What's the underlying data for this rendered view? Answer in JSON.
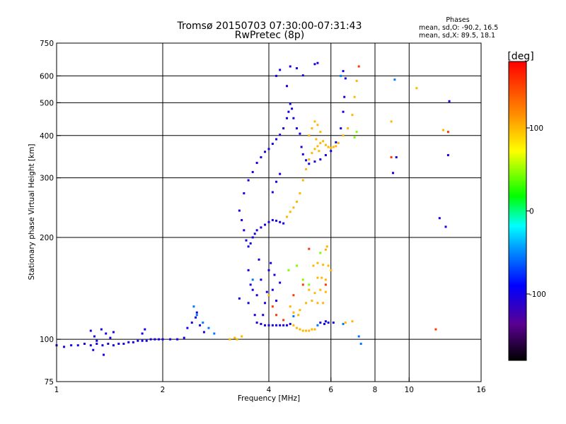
{
  "chart_data": {
    "type": "scatter",
    "title": "Tromsø 20150703 07:30:00-07:31:43",
    "subtitle": "RwPretec (8p)",
    "xlabel": "Frequency [MHz]",
    "ylabel": "Stationary phase Virtual Height [km]",
    "x_scale": "log",
    "y_scale": "log",
    "xlim": [
      1,
      16
    ],
    "ylim": [
      75,
      750
    ],
    "x_ticks": [
      1,
      2,
      4,
      6,
      8,
      10,
      16
    ],
    "y_ticks": [
      75,
      100,
      200,
      300,
      400,
      500,
      600,
      750
    ],
    "x_grid": [
      2,
      4,
      6,
      8,
      10
    ],
    "y_grid": [
      100,
      200,
      300,
      400,
      500,
      600
    ],
    "grid": true,
    "stats": {
      "header": "Phases",
      "line1": "mean, sd,O: -90.2, 16.5",
      "line2": "mean, sd,X:  89.5, 18.1"
    },
    "colorbar": {
      "label": "[deg]",
      "range": [
        -180,
        180
      ],
      "ticks": [
        {
          "value": 100,
          "label": "100"
        },
        {
          "value": 0,
          "label": "0"
        },
        {
          "value": -100,
          "label": "-100"
        }
      ]
    },
    "series": [
      {
        "phase": -100,
        "points": [
          [
            1.0,
            96
          ],
          [
            1.05,
            95
          ],
          [
            1.1,
            96
          ],
          [
            1.15,
            96
          ],
          [
            1.2,
            97
          ],
          [
            1.25,
            96
          ],
          [
            1.3,
            97
          ],
          [
            1.35,
            96
          ],
          [
            1.4,
            97
          ],
          [
            1.45,
            96
          ],
          [
            1.5,
            97
          ],
          [
            1.55,
            97
          ],
          [
            1.6,
            98
          ],
          [
            1.65,
            98
          ],
          [
            1.7,
            99
          ],
          [
            1.75,
            99
          ],
          [
            1.8,
            99
          ],
          [
            1.85,
            100
          ],
          [
            1.9,
            100
          ],
          [
            1.95,
            100
          ],
          [
            2.0,
            100
          ],
          [
            2.1,
            100
          ],
          [
            2.2,
            100
          ],
          [
            2.3,
            101
          ],
          [
            1.25,
            106
          ],
          [
            1.28,
            102
          ],
          [
            1.3,
            99
          ],
          [
            1.34,
            107
          ],
          [
            1.38,
            104
          ],
          [
            1.42,
            101
          ],
          [
            1.45,
            105
          ],
          [
            1.27,
            93
          ],
          [
            1.36,
            90
          ],
          [
            1.75,
            104
          ],
          [
            1.78,
            107
          ],
          [
            2.35,
            108
          ],
          [
            2.42,
            112
          ],
          [
            2.48,
            116
          ],
          [
            2.55,
            110
          ],
          [
            2.5,
            120
          ],
          [
            2.62,
            105
          ],
          [
            3.3,
            132
          ],
          [
            3.5,
            128
          ],
          [
            3.6,
            140
          ],
          [
            3.7,
            135
          ],
          [
            3.8,
            150
          ],
          [
            3.9,
            128
          ],
          [
            4.0,
            160
          ],
          [
            4.1,
            140
          ],
          [
            4.2,
            130
          ],
          [
            4.3,
            147
          ],
          [
            3.5,
            160
          ],
          [
            3.65,
            118
          ],
          [
            3.75,
            172
          ],
          [
            4.05,
            168
          ],
          [
            3.85,
            118
          ],
          [
            4.15,
            155
          ],
          [
            3.55,
            145
          ],
          [
            3.95,
            138
          ],
          [
            3.7,
            112
          ],
          [
            3.8,
            111
          ],
          [
            3.9,
            110
          ],
          [
            4.0,
            110
          ],
          [
            4.1,
            110
          ],
          [
            4.2,
            110
          ],
          [
            4.3,
            110
          ],
          [
            4.4,
            110
          ],
          [
            4.5,
            110
          ],
          [
            4.6,
            111
          ],
          [
            5.6,
            112
          ],
          [
            5.75,
            111
          ],
          [
            5.9,
            112
          ],
          [
            6.1,
            112
          ],
          [
            5.8,
            113
          ],
          [
            3.3,
            240
          ],
          [
            3.35,
            225
          ],
          [
            3.4,
            210
          ],
          [
            3.45,
            196
          ],
          [
            3.5,
            188
          ],
          [
            3.55,
            192
          ],
          [
            3.6,
            200
          ],
          [
            3.65,
            205
          ],
          [
            3.7,
            210
          ],
          [
            3.8,
            214
          ],
          [
            3.9,
            218
          ],
          [
            4.0,
            222
          ],
          [
            4.1,
            225
          ],
          [
            4.2,
            224
          ],
          [
            4.3,
            222
          ],
          [
            4.4,
            220
          ],
          [
            3.4,
            270
          ],
          [
            3.5,
            295
          ],
          [
            3.6,
            312
          ],
          [
            3.7,
            332
          ],
          [
            3.8,
            345
          ],
          [
            3.9,
            358
          ],
          [
            4.0,
            365
          ],
          [
            4.1,
            378
          ],
          [
            4.2,
            390
          ],
          [
            4.3,
            402
          ],
          [
            4.4,
            420
          ],
          [
            4.5,
            450
          ],
          [
            4.55,
            470
          ],
          [
            4.6,
            496
          ],
          [
            4.65,
            480
          ],
          [
            4.7,
            450
          ],
          [
            4.8,
            420
          ],
          [
            4.9,
            405
          ],
          [
            4.1,
            272
          ],
          [
            4.2,
            292
          ],
          [
            4.3,
            308
          ],
          [
            4.95,
            370
          ],
          [
            5.0,
            352
          ],
          [
            5.1,
            338
          ],
          [
            5.2,
            330
          ],
          [
            5.4,
            335
          ],
          [
            5.6,
            340
          ],
          [
            5.8,
            350
          ],
          [
            6.0,
            360
          ],
          [
            6.2,
            382
          ],
          [
            6.4,
            420
          ],
          [
            6.5,
            470
          ],
          [
            6.55,
            520
          ],
          [
            6.6,
            590
          ],
          [
            6.5,
            620
          ],
          [
            4.2,
            600
          ],
          [
            4.3,
            625
          ],
          [
            4.6,
            640
          ],
          [
            4.8,
            632
          ],
          [
            5.0,
            602
          ],
          [
            5.4,
            650
          ],
          [
            5.5,
            655
          ],
          [
            4.5,
            560
          ],
          [
            9.0,
            310
          ],
          [
            9.2,
            345
          ],
          [
            12.7,
            215
          ],
          [
            12.9,
            350
          ],
          [
            13.0,
            505
          ],
          [
            12.2,
            228
          ]
        ]
      },
      {
        "phase": -55,
        "points": [
          [
            2.45,
            125
          ],
          [
            2.5,
            118
          ],
          [
            2.6,
            112
          ],
          [
            2.7,
            108
          ],
          [
            2.8,
            104
          ],
          [
            4.7,
            117
          ],
          [
            5.5,
            110
          ],
          [
            6.5,
            111
          ],
          [
            7.2,
            102
          ],
          [
            7.3,
            97
          ],
          [
            9.1,
            585
          ],
          [
            6.4,
            600
          ],
          [
            3.6,
            150
          ]
        ]
      },
      {
        "phase": 45,
        "points": [
          [
            4.55,
            160
          ],
          [
            5.0,
            150
          ],
          [
            5.2,
            145
          ],
          [
            4.8,
            165
          ],
          [
            7.0,
            395
          ],
          [
            7.1,
            410
          ],
          [
            5.6,
            180
          ]
        ]
      },
      {
        "phase": 100,
        "points": [
          [
            3.1,
            100
          ],
          [
            3.2,
            101
          ],
          [
            3.25,
            100
          ],
          [
            3.35,
            102
          ],
          [
            4.5,
            230
          ],
          [
            4.6,
            238
          ],
          [
            4.7,
            245
          ],
          [
            4.8,
            255
          ],
          [
            4.9,
            270
          ],
          [
            5.0,
            295
          ],
          [
            5.1,
            318
          ],
          [
            5.2,
            340
          ],
          [
            5.3,
            355
          ],
          [
            5.4,
            365
          ],
          [
            5.5,
            372
          ],
          [
            5.6,
            380
          ],
          [
            5.7,
            385
          ],
          [
            5.8,
            375
          ],
          [
            5.9,
            370
          ],
          [
            6.0,
            368
          ],
          [
            6.1,
            370
          ],
          [
            6.2,
            372
          ],
          [
            6.3,
            380
          ],
          [
            6.5,
            400
          ],
          [
            6.7,
            420
          ],
          [
            6.9,
            460
          ],
          [
            7.0,
            520
          ],
          [
            7.1,
            580
          ],
          [
            5.2,
            400
          ],
          [
            5.3,
            420
          ],
          [
            5.4,
            440
          ],
          [
            5.5,
            430
          ],
          [
            5.6,
            410
          ],
          [
            5.45,
            390
          ],
          [
            5.55,
            360
          ],
          [
            4.7,
            110
          ],
          [
            4.8,
            108
          ],
          [
            4.9,
            107
          ],
          [
            5.0,
            106
          ],
          [
            5.1,
            106
          ],
          [
            5.2,
            106
          ],
          [
            5.3,
            107
          ],
          [
            5.4,
            107
          ],
          [
            4.6,
            125
          ],
          [
            4.7,
            120
          ],
          [
            4.85,
            118
          ],
          [
            4.9,
            122
          ],
          [
            5.1,
            128
          ],
          [
            5.3,
            130
          ],
          [
            5.5,
            128
          ],
          [
            5.7,
            128
          ],
          [
            5.2,
            140
          ],
          [
            5.4,
            137
          ],
          [
            5.6,
            140
          ],
          [
            5.8,
            138
          ],
          [
            5.5,
            152
          ],
          [
            5.65,
            152
          ],
          [
            5.8,
            150
          ],
          [
            5.35,
            165
          ],
          [
            5.5,
            168
          ],
          [
            5.7,
            166
          ],
          [
            5.8,
            184
          ],
          [
            5.85,
            188
          ],
          [
            6.6,
            112
          ],
          [
            6.9,
            113
          ],
          [
            5.9,
            165
          ],
          [
            6.0,
            160
          ],
          [
            10.5,
            552
          ],
          [
            8.9,
            440
          ],
          [
            12.5,
            415
          ],
          [
            4.0,
            135
          ]
        ]
      },
      {
        "phase": 155,
        "points": [
          [
            4.1,
            125
          ],
          [
            4.2,
            118
          ],
          [
            4.4,
            114
          ],
          [
            4.7,
            135
          ],
          [
            5.0,
            145
          ],
          [
            5.8,
            145
          ],
          [
            8.9,
            345
          ],
          [
            11.9,
            107
          ],
          [
            7.2,
            640
          ],
          [
            12.9,
            410
          ],
          [
            5.2,
            185
          ]
        ]
      }
    ]
  }
}
